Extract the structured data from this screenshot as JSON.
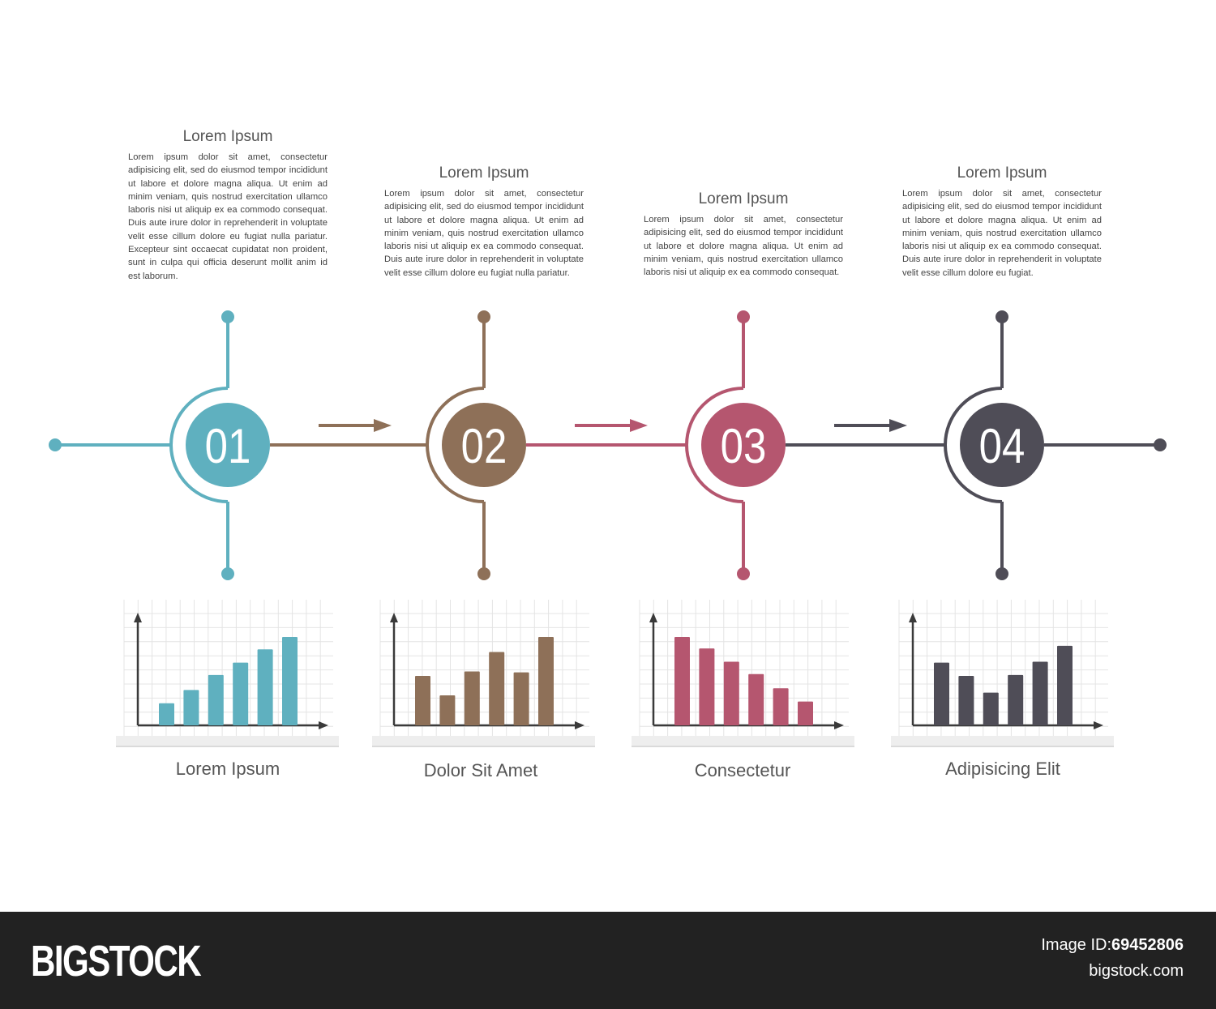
{
  "colors": {
    "step1": "#5fb0bf",
    "step2": "#8e7058",
    "step3": "#b5566f",
    "step4": "#4f4d57"
  },
  "steps": [
    {
      "number": "01",
      "title": "Lorem Ipsum",
      "body": "Lorem ipsum dolor sit amet, consectetur adipisicing elit, sed do eiusmod tempor incididunt ut labore et dolore magna aliqua. Ut enim ad minim veniam, quis nostrud exercitation ullamco laboris nisi ut aliquip ex ea commodo consequat. Duis aute irure dolor in reprehenderit in voluptate velit esse cillum dolore eu fugiat nulla pariatur. Excepteur sint occaecat cupidatat non proident, sunt in culpa qui officia deserunt mollit anim id est laborum.",
      "chart_label": "Lorem Ipsum"
    },
    {
      "number": "02",
      "title": "Lorem Ipsum",
      "body": "Lorem ipsum dolor sit amet, consectetur adipisicing elit, sed do eiusmod tempor incididunt ut labore et dolore magna aliqua. Ut enim ad minim veniam, quis nostrud exercitation ullamco laboris nisi ut aliquip ex ea commodo consequat. Duis aute irure dolor in reprehenderit in voluptate velit esse cillum dolore eu fugiat nulla pariatur.",
      "chart_label": "Dolor Sit Amet"
    },
    {
      "number": "03",
      "title": "Lorem Ipsum",
      "body": "Lorem ipsum dolor sit amet, consectetur adipisicing elit, sed do eiusmod tempor incididunt ut labore et dolore magna aliqua. Ut enim ad minim veniam, quis nostrud exercitation ullamco laboris nisi ut aliquip ex ea commodo consequat.",
      "chart_label": "Consectetur"
    },
    {
      "number": "04",
      "title": "Lorem Ipsum",
      "body": "Lorem ipsum dolor sit amet, consectetur adipisicing elit, sed do eiusmod tempor incididunt ut labore et dolore magna aliqua. Ut enim ad minim veniam, quis nostrud exercitation ullamco laboris nisi ut aliquip ex ea commodo consequat. Duis aute irure dolor in reprehenderit in voluptate velit esse cillum dolore eu fugiat.",
      "chart_label": "Adipisicing Elit"
    }
  ],
  "chart_data": [
    {
      "type": "bar",
      "values": [
        25,
        40,
        57,
        71,
        86,
        100
      ]
    },
    {
      "type": "bar",
      "values": [
        56,
        34,
        61,
        83,
        60,
        100
      ]
    },
    {
      "type": "bar",
      "values": [
        100,
        87,
        72,
        58,
        42,
        27
      ]
    },
    {
      "type": "bar",
      "values": [
        71,
        56,
        37,
        57,
        72,
        90
      ]
    }
  ],
  "footer": {
    "logo": "BIGSTOCK",
    "image_id_label": "Image ID:",
    "image_id": "69452806",
    "site": "bigstock.com"
  }
}
